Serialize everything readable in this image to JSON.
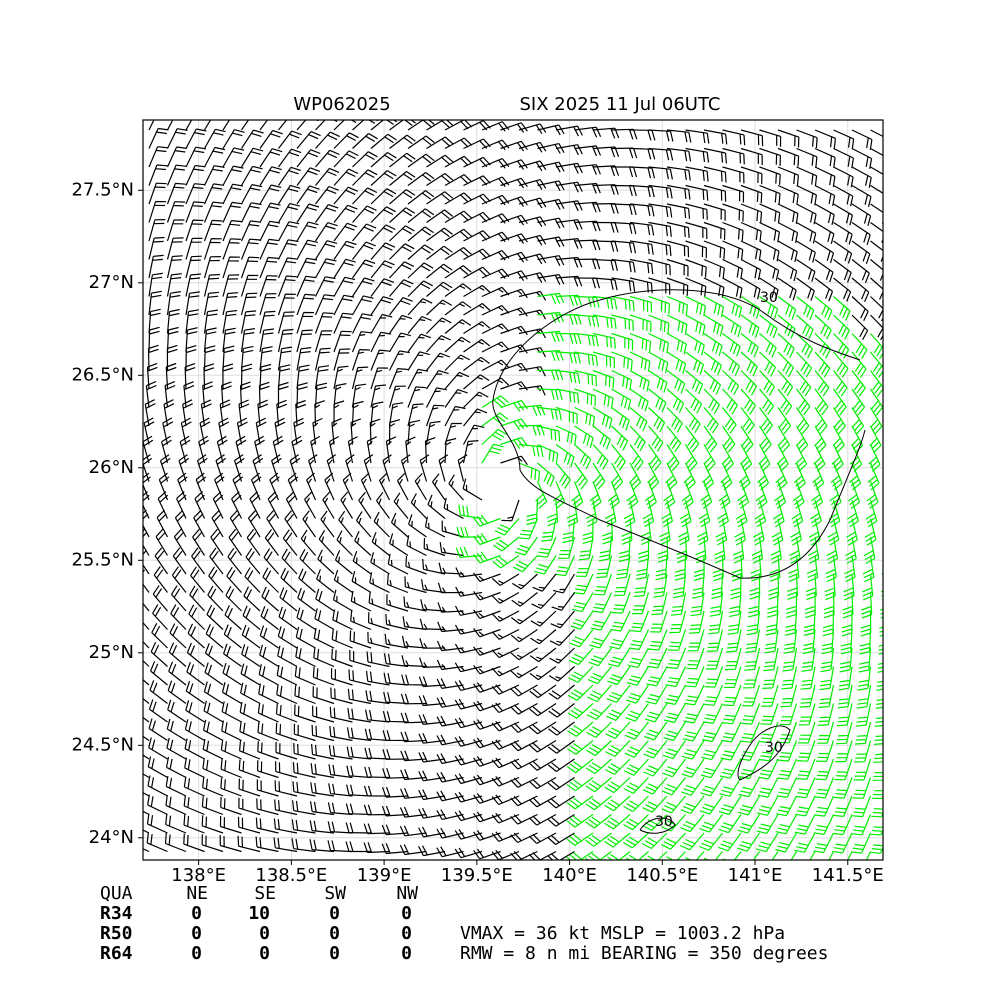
{
  "chart_data": {
    "type": "wind-barb-map",
    "title_left": "WP062025",
    "title_right": "SIX 2025 11 Jul 06UTC",
    "xlim": [
      137.7,
      141.69
    ],
    "ylim": [
      23.88,
      27.88
    ],
    "xticks": [
      {
        "value": 138,
        "label": "138°E"
      },
      {
        "value": 138.5,
        "label": "138.5°E"
      },
      {
        "value": 139,
        "label": "139°E"
      },
      {
        "value": 139.5,
        "label": "139.5°E"
      },
      {
        "value": 140,
        "label": "140°E"
      },
      {
        "value": 140.5,
        "label": "140.5°E"
      },
      {
        "value": 141,
        "label": "141°E"
      },
      {
        "value": 141.5,
        "label": "141.5°E"
      }
    ],
    "yticks": [
      {
        "value": 24,
        "label": "24°N"
      },
      {
        "value": 24.5,
        "label": "24.5°N"
      },
      {
        "value": 25,
        "label": "25°N"
      },
      {
        "value": 25.5,
        "label": "25.5°N"
      },
      {
        "value": 26,
        "label": "26°N"
      },
      {
        "value": 26.5,
        "label": "26.5°N"
      },
      {
        "value": 27,
        "label": "27°N"
      },
      {
        "value": 27.5,
        "label": "27.5°N"
      }
    ],
    "grid": true,
    "contour_labels": [
      30,
      30,
      30
    ],
    "barb_color": "#000000",
    "strong_barb_color": "#00ee00"
  },
  "table": {
    "header": [
      "QUA",
      "NE",
      "SE",
      "SW",
      "NW"
    ],
    "rows": [
      [
        "R34",
        "0",
        "10",
        "0",
        "0"
      ],
      [
        "R50",
        "0",
        "0",
        "0",
        "0"
      ],
      [
        "R64",
        "0",
        "0",
        "0",
        "0"
      ]
    ]
  },
  "summary": [
    "VMAX =  36 kt MSLP = 1003.2 hPa",
    "RMW =   8 n mi BEARING = 350 degrees"
  ]
}
